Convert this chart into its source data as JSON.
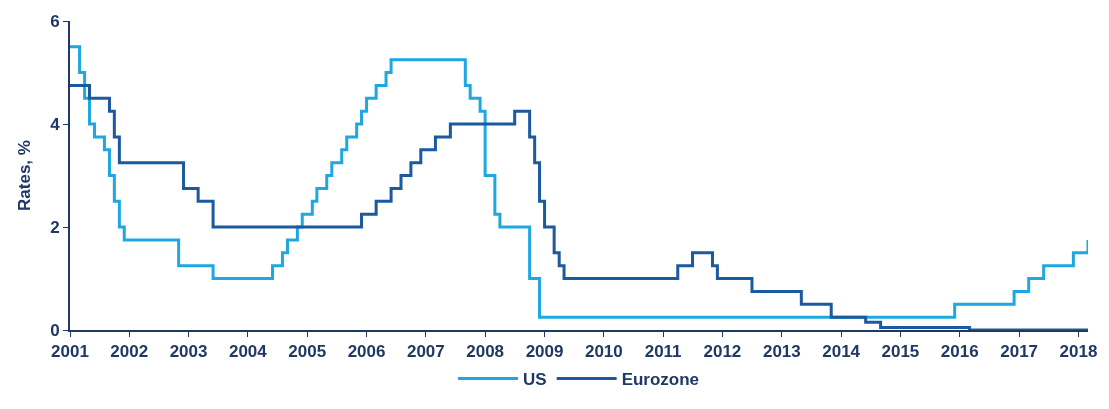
{
  "chart_data": {
    "type": "step",
    "ylabel": "Rates, %",
    "ylim": [
      0,
      6
    ],
    "yticks": [
      0,
      2,
      4,
      6
    ],
    "xlim": [
      "2001-01-01",
      "2018-03-01"
    ],
    "xticks": [
      {
        "value": "2001-01-01",
        "label": "2001"
      },
      {
        "value": "2002-01-01",
        "label": "2002"
      },
      {
        "value": "2003-01-01",
        "label": "2003"
      },
      {
        "value": "2004-01-01",
        "label": "2004"
      },
      {
        "value": "2005-01-01",
        "label": "2005"
      },
      {
        "value": "2006-01-01",
        "label": "2006"
      },
      {
        "value": "2007-01-01",
        "label": "2007"
      },
      {
        "value": "2008-01-01",
        "label": "2008"
      },
      {
        "value": "2009-01-01",
        "label": "2009"
      },
      {
        "value": "2010-01-01",
        "label": "2010"
      },
      {
        "value": "2011-01-01",
        "label": "2011"
      },
      {
        "value": "2012-01-01",
        "label": "2012"
      },
      {
        "value": "2013-01-01",
        "label": "2013"
      },
      {
        "value": "2014-01-01",
        "label": "2014"
      },
      {
        "value": "2015-01-01",
        "label": "2015"
      },
      {
        "value": "2016-01-01",
        "label": "2016"
      },
      {
        "value": "2017-01-01",
        "label": "2017"
      },
      {
        "value": "2018-01-01",
        "label": "2018"
      }
    ],
    "legend": "bottom",
    "line_style": "solid",
    "marker": "none",
    "series": [
      {
        "name": "US",
        "color": "#1ea7e1",
        "x": [
          "2001-01",
          "2001-03",
          "2001-04",
          "2001-05",
          "2001-06",
          "2001-08",
          "2001-09",
          "2001-10",
          "2001-11",
          "2001-12",
          "2002-11",
          "2003-06",
          "2004-06",
          "2004-08",
          "2004-09",
          "2004-11",
          "2004-12",
          "2005-02",
          "2005-03",
          "2005-05",
          "2005-06",
          "2005-08",
          "2005-09",
          "2005-11",
          "2005-12",
          "2006-01",
          "2006-03",
          "2006-05",
          "2006-06",
          "2007-09",
          "2007-10",
          "2007-12",
          "2008-01",
          "2008-03",
          "2008-04",
          "2008-10",
          "2008-12",
          "2015-12",
          "2016-12",
          "2017-03",
          "2017-06",
          "2017-12",
          "2018-03"
        ],
        "values": [
          5.5,
          5.0,
          4.5,
          4.0,
          3.75,
          3.5,
          3.0,
          2.5,
          2.0,
          1.75,
          1.25,
          1.0,
          1.25,
          1.5,
          1.75,
          2.0,
          2.25,
          2.5,
          2.75,
          3.0,
          3.25,
          3.5,
          3.75,
          4.0,
          4.25,
          4.5,
          4.75,
          5.0,
          5.25,
          4.75,
          4.5,
          4.25,
          3.0,
          2.25,
          2.0,
          1.0,
          0.25,
          0.5,
          0.75,
          1.0,
          1.25,
          1.5,
          1.75
        ]
      },
      {
        "name": "Eurozone",
        "color": "#1b5a9e",
        "x": [
          "2001-01",
          "2001-05",
          "2001-09",
          "2001-10",
          "2001-11",
          "2002-12",
          "2003-03",
          "2003-06",
          "2005-12",
          "2006-03",
          "2006-06",
          "2006-08",
          "2006-10",
          "2006-12",
          "2007-03",
          "2007-06",
          "2008-07",
          "2008-10",
          "2008-11",
          "2008-12",
          "2009-01",
          "2009-03",
          "2009-04",
          "2009-05",
          "2011-04",
          "2011-07",
          "2011-11",
          "2011-12",
          "2012-07",
          "2013-05",
          "2013-11",
          "2014-06",
          "2014-09",
          "2016-03",
          "2018-03"
        ],
        "values": [
          4.75,
          4.5,
          4.25,
          3.75,
          3.25,
          2.75,
          2.5,
          2.0,
          2.25,
          2.5,
          2.75,
          3.0,
          3.25,
          3.5,
          3.75,
          4.0,
          4.25,
          3.75,
          3.25,
          2.5,
          2.0,
          1.5,
          1.25,
          1.0,
          1.25,
          1.5,
          1.25,
          1.0,
          0.75,
          0.5,
          0.25,
          0.15,
          0.05,
          0.0,
          0.0
        ]
      }
    ]
  }
}
